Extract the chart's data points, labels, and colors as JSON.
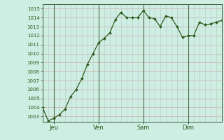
{
  "x_values": [
    0,
    3,
    6,
    9,
    12,
    15,
    18,
    21,
    24,
    27,
    30,
    33,
    36,
    39,
    42,
    45,
    48,
    51,
    54,
    57,
    60,
    63,
    66,
    69,
    72,
    75,
    78,
    81,
    84,
    87,
    90,
    93,
    96
  ],
  "y_values": [
    1004.0,
    1002.5,
    1002.8,
    1003.2,
    1003.8,
    1005.2,
    1006.0,
    1007.2,
    1008.8,
    1010.0,
    1011.2,
    1011.7,
    1012.3,
    1013.8,
    1014.6,
    1014.0,
    1014.0,
    1014.0,
    1014.8,
    1014.0,
    1013.9,
    1013.0,
    1014.2,
    1014.0,
    1013.0,
    1011.8,
    1012.0,
    1012.0,
    1013.5,
    1013.2,
    1013.3,
    1013.5,
    1013.7
  ],
  "xtick_positions": [
    6,
    30,
    54,
    78
  ],
  "xtick_labels": [
    "Jeu",
    "Ven",
    "Sam",
    "Dim"
  ],
  "vline_positions": [
    6,
    30,
    54,
    78
  ],
  "ylim_low": 1002.4,
  "ylim_high": 1015.5,
  "ytick_min": 1003,
  "ytick_max": 1015,
  "line_color": "#2d5a1b",
  "marker_color": "#2d5a1b",
  "bg_color": "#ceeee4",
  "grid_h_color": "#d4a8a8",
  "grid_v_color": "#b8cfc8",
  "vline_color": "#4a6a4a",
  "spine_color": "#3a5a3a",
  "tick_label_color": "#2d5a1b",
  "figsize": [
    3.2,
    2.0
  ],
  "dpi": 100
}
